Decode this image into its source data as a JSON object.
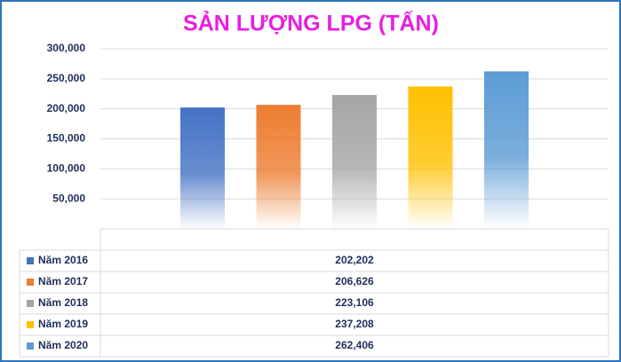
{
  "chart_data": {
    "type": "bar",
    "title": "SẢN LƯỢNG LPG (TẤN)",
    "categories": [
      null
    ],
    "series": [
      {
        "name": "Năm 2016",
        "color": "#4472c4",
        "values": [
          202202
        ],
        "value_labels": [
          "202,202"
        ]
      },
      {
        "name": "Năm 2017",
        "color": "#ed7d31",
        "values": [
          206626
        ],
        "value_labels": [
          "206,626"
        ]
      },
      {
        "name": "Năm 2018",
        "color": "#a5a5a5",
        "values": [
          223106
        ],
        "value_labels": [
          "223,106"
        ]
      },
      {
        "name": "Năm 2019",
        "color": "#ffc000",
        "values": [
          237208
        ],
        "value_labels": [
          "237,208"
        ]
      },
      {
        "name": "Năm 2020",
        "color": "#5b9bd5",
        "values": [
          262406
        ],
        "value_labels": [
          "262,406"
        ]
      }
    ],
    "ylim": [
      0,
      300000
    ],
    "yticks": [
      {
        "value": 50000,
        "label": "50,000"
      },
      {
        "value": 100000,
        "label": "100,000"
      },
      {
        "value": 150000,
        "label": "150,000"
      },
      {
        "value": 200000,
        "label": "200,000"
      },
      {
        "value": 250000,
        "label": "250,000"
      },
      {
        "value": 300000,
        "label": "300,000"
      }
    ],
    "grid": true,
    "data_table": true
  }
}
